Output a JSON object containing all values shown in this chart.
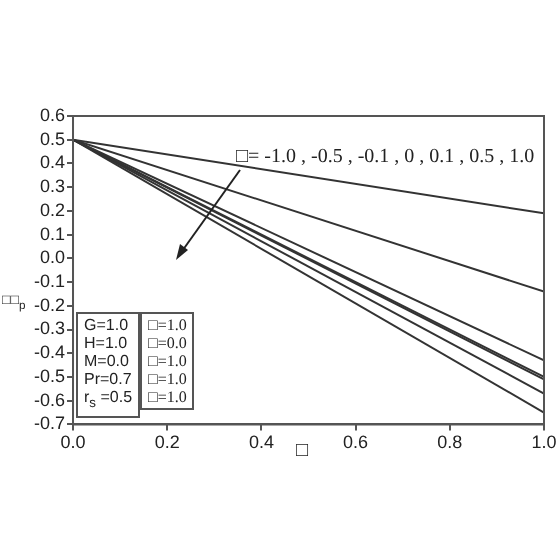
{
  "chart_data": {
    "type": "line",
    "xlabel": "□",
    "ylabel": "□□$_{p}$",
    "xlim": [
      0,
      1
    ],
    "ylim": [
      -0.7,
      0.6
    ],
    "xticks": [
      {
        "value": 0,
        "label": "0.0"
      },
      {
        "value": 0.2,
        "label": "0.2"
      },
      {
        "value": 0.4,
        "label": "0.4"
      },
      {
        "value": 0.6,
        "label": "0.6"
      },
      {
        "value": 0.8,
        "label": "0.8"
      },
      {
        "value": 1,
        "label": "1.0"
      }
    ],
    "yticks": [
      {
        "value": -0.7,
        "label": "-0.7"
      },
      {
        "value": -0.6,
        "label": "-0.6"
      },
      {
        "value": -0.5,
        "label": "-0.5"
      },
      {
        "value": -0.4,
        "label": "-0.4"
      },
      {
        "value": -0.3,
        "label": "-0.3"
      },
      {
        "value": -0.2,
        "label": "-0.2"
      },
      {
        "value": -0.1,
        "label": "-0.1"
      },
      {
        "value": 0,
        "label": "0.0"
      },
      {
        "value": 0.1,
        "label": "0.1"
      },
      {
        "value": 0.2,
        "label": "0.2"
      },
      {
        "value": 0.3,
        "label": "0.3"
      },
      {
        "value": 0.4,
        "label": "0.4"
      },
      {
        "value": 0.5,
        "label": "0.5"
      },
      {
        "value": 0.6,
        "label": "0.6"
      }
    ],
    "x": [
      0,
      1
    ],
    "series": [
      {
        "color": "#333333",
        "values": [
          0.5,
          0.19
        ]
      },
      {
        "color": "#333333",
        "values": [
          0.5,
          -0.14
        ]
      },
      {
        "color": "#333333",
        "values": [
          0.5,
          -0.43
        ]
      },
      {
        "color": "#333333",
        "values": [
          0.5,
          -0.5
        ]
      },
      {
        "color": "#333333",
        "values": [
          0.5,
          -0.51
        ]
      },
      {
        "color": "#333333",
        "values": [
          0.5,
          -0.57
        ]
      },
      {
        "color": "#333333",
        "values": [
          0.5,
          -0.65
        ]
      }
    ],
    "annotations": [
      "□= -1.0 , -0.5 , -0.1 , 0 , 0.1 , 0.5 , 1.0",
      "G=1.0",
      "H=1.0",
      "M=0.0",
      "Pr=0.7",
      "r$_{s}$ =0.5",
      "□=1.0",
      "□=0.0",
      "□=1.0",
      "□=1.0",
      "□=1.0"
    ],
    "grid": false,
    "legend": false,
    "marker": "none",
    "line_style": "solid"
  }
}
